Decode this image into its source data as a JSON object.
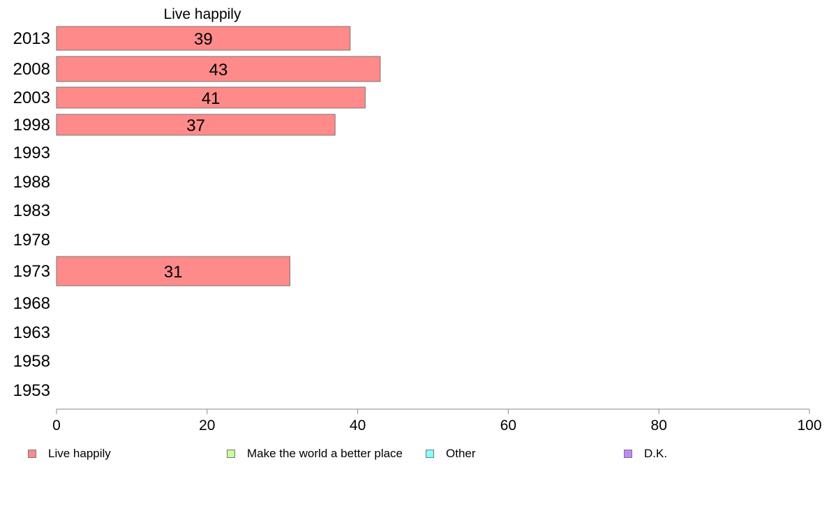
{
  "chart_data": {
    "type": "bar",
    "orientation": "horizontal",
    "title": "Live happily",
    "categories": [
      "2013",
      "2008",
      "2003",
      "1998",
      "1993",
      "1988",
      "1983",
      "1978",
      "1973",
      "1968",
      "1963",
      "1958",
      "1953"
    ],
    "series": [
      {
        "name": "Live happily",
        "values": [
          39,
          43,
          41,
          37,
          null,
          null,
          null,
          null,
          31,
          null,
          null,
          null,
          null
        ],
        "color": "#ff8a8a"
      }
    ],
    "data_labels": [
      "39",
      "43",
      "41",
      "37",
      "",
      "",
      "",
      "",
      "31",
      "",
      "",
      "",
      ""
    ],
    "xlim": [
      0,
      100
    ],
    "xticks": [
      0,
      20,
      40,
      60,
      80,
      100
    ],
    "xlabel": "",
    "ylabel": "",
    "grid": false,
    "legend": {
      "placement": "bottom",
      "entries": [
        {
          "label": "Live happily",
          "color": "#ff8a8a"
        },
        {
          "label": "Make the world a better place",
          "color": "#ccff99"
        },
        {
          "label": "Other",
          "color": "#88ffff"
        },
        {
          "label": "D.K.",
          "color": "#c088ff"
        }
      ]
    }
  }
}
